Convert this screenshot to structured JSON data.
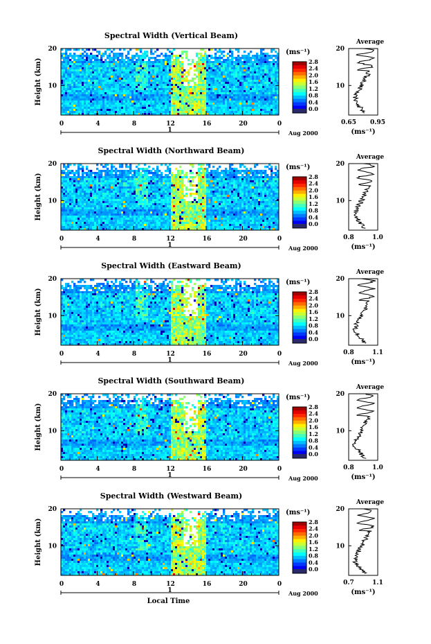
{
  "chart_data": [
    {
      "type": "heatmap",
      "title": "Spectral Width (Vertical Beam)",
      "ylabel": "Height (km)",
      "xticks": [
        "0",
        "4",
        "8",
        "12",
        "16",
        "20",
        "0"
      ],
      "yticks": [
        "10",
        "20"
      ],
      "xlim": [
        0,
        24
      ],
      "ylim": [
        2,
        20
      ],
      "date_label": "Aug 2000",
      "date_tick": "1",
      "colorbar": {
        "unit": "(ms⁻¹)",
        "ticks": [
          "0.0",
          "0.4",
          "0.8",
          "1.2",
          "1.6",
          "2.0",
          "2.4",
          "2.8"
        ],
        "range": [
          0,
          2.8
        ]
      },
      "average": {
        "title": "Average",
        "xticks": [
          "0.65",
          "0.95"
        ],
        "xlim": [
          0.65,
          0.95
        ],
        "yticks": [
          "10",
          "20"
        ],
        "xlabel": "(ms⁻¹)"
      }
    },
    {
      "type": "heatmap",
      "title": "Spectral Width (Northward Beam)",
      "ylabel": "Height (km)",
      "xticks": [
        "0",
        "4",
        "8",
        "12",
        "16",
        "20",
        "0"
      ],
      "yticks": [
        "10",
        "20"
      ],
      "xlim": [
        0,
        24
      ],
      "ylim": [
        2,
        20
      ],
      "date_label": "Aug 2000",
      "date_tick": "1",
      "colorbar": {
        "unit": "(ms⁻¹)",
        "ticks": [
          "0.0",
          "0.4",
          "0.8",
          "1.2",
          "1.6",
          "2.0",
          "2.4",
          "2.8"
        ],
        "range": [
          0,
          2.8
        ]
      },
      "average": {
        "title": "Average",
        "xticks": [
          "0.8",
          "1.0"
        ],
        "xlim": [
          0.8,
          1.0
        ],
        "yticks": [
          "10",
          "20"
        ],
        "xlabel": "(ms⁻¹)"
      }
    },
    {
      "type": "heatmap",
      "title": "Spectral Width (Eastward Beam)",
      "ylabel": "Height (km)",
      "xticks": [
        "0",
        "4",
        "8",
        "12",
        "16",
        "20",
        "0"
      ],
      "yticks": [
        "10",
        "20"
      ],
      "xlim": [
        0,
        24
      ],
      "ylim": [
        2,
        20
      ],
      "date_label": "Aug 2000",
      "date_tick": "1",
      "colorbar": {
        "unit": "(ms⁻¹)",
        "ticks": [
          "0.0",
          "0.4",
          "0.8",
          "1.2",
          "1.6",
          "2.0",
          "2.4",
          "2.8"
        ],
        "range": [
          0,
          2.8
        ]
      },
      "average": {
        "title": "Average",
        "xticks": [
          "0.8",
          "1.1"
        ],
        "xlim": [
          0.8,
          1.1
        ],
        "yticks": [
          "10",
          "20"
        ],
        "xlabel": "(ms⁻¹)"
      }
    },
    {
      "type": "heatmap",
      "title": "Spectral Width (Southward Beam)",
      "ylabel": "Height (km)",
      "xticks": [
        "0",
        "4",
        "8",
        "12",
        "16",
        "20",
        "0"
      ],
      "yticks": [
        "10",
        "20"
      ],
      "xlim": [
        0,
        24
      ],
      "ylim": [
        2,
        20
      ],
      "date_label": "Aug 2000",
      "date_tick": "1",
      "colorbar": {
        "unit": "(ms⁻¹)",
        "ticks": [
          "0.0",
          "0.4",
          "0.8",
          "1.2",
          "1.6",
          "2.0",
          "2.4",
          "2.8"
        ],
        "range": [
          0,
          2.8
        ]
      },
      "average": {
        "title": "Average",
        "xticks": [
          "0.8",
          "1.0"
        ],
        "xlim": [
          0.8,
          1.0
        ],
        "yticks": [
          "10",
          "20"
        ],
        "xlabel": "(ms⁻¹)"
      }
    },
    {
      "type": "heatmap",
      "title": "Spectral Width (Westward Beam)",
      "ylabel": "Height (km)",
      "xticks": [
        "0",
        "4",
        "8",
        "12",
        "16",
        "20",
        "0"
      ],
      "yticks": [
        "10",
        "20"
      ],
      "xlim": [
        0,
        24
      ],
      "ylim": [
        2,
        20
      ],
      "date_label": "Aug 2000",
      "date_tick": "1",
      "xlabel": "Local Time",
      "colorbar": {
        "unit": "(ms⁻¹)",
        "ticks": [
          "0.0",
          "0.4",
          "0.8",
          "1.2",
          "1.6",
          "2.0",
          "2.4",
          "2.8"
        ],
        "range": [
          0,
          2.8
        ]
      },
      "average": {
        "title": "Average",
        "xticks": [
          "0.7",
          "1.1"
        ],
        "xlim": [
          0.7,
          1.1
        ],
        "yticks": [
          "10",
          "20"
        ],
        "xlabel": "(ms⁻¹)"
      }
    }
  ]
}
